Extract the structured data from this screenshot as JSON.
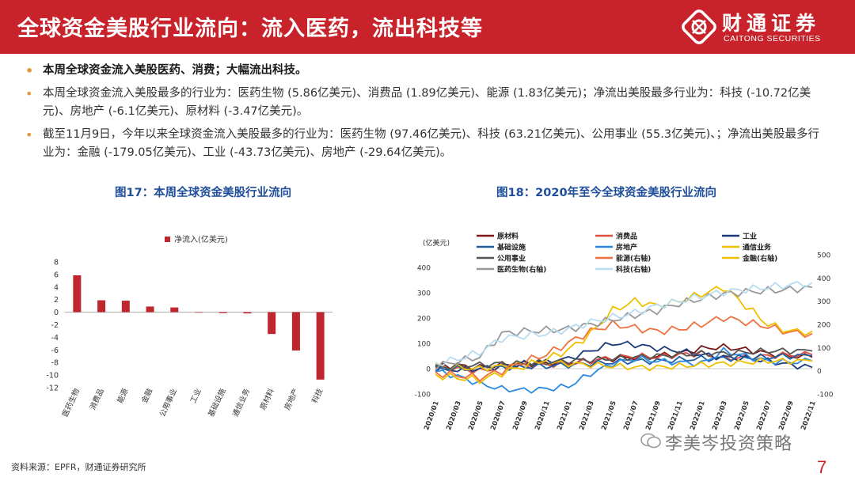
{
  "header": {
    "title": "全球资金美股行业流向：流入医药，流出科技等",
    "logo_cn": "财通证券",
    "logo_en": "CAITONG SECURITIES",
    "color": "#c8232b"
  },
  "bullets": [
    "本周全球资金流入美股医药、消费；大幅流出科技。",
    "本周全球资金流入美股最多的行业为：医药生物 (5.86亿美元)、消费品 (1.89亿美元)、能源 (1.83亿美元)；净流出美股最多行业为：科技 (-10.72亿美元)、房地产 (-6.1亿美元)、原材料 (-3.47亿美元)。",
    "截至11月9日，今年以来全球资金流入美股最多的行业为：医药生物 (97.46亿美元)、科技 (63.21亿美元)、公用事业 (55.3亿美元)、；净流出美股最多行业为：金融 (-179.05亿美元)、工业 (-43.73亿美元)、房地产 (-29.64亿美元)。"
  ],
  "fig17": {
    "title": "图17：本周全球资金美股行业流向"
  },
  "fig18": {
    "title": "图18：2020年至今全球资金美股行业流向"
  },
  "chart_data": [
    {
      "type": "bar",
      "title": "图17：本周全球资金美股行业流向",
      "legend": "净流入(亿美元)",
      "categories": [
        "医药生物",
        "消费品",
        "能源",
        "金融",
        "公用事业",
        "工业",
        "基础设施",
        "通信业务",
        "原材料",
        "房地产",
        "科技"
      ],
      "values": [
        5.86,
        1.89,
        1.83,
        0.9,
        0.75,
        0.0,
        -0.15,
        -0.2,
        -3.47,
        -6.1,
        -10.72
      ],
      "ylim": [
        -12,
        8
      ],
      "yticks": [
        "8",
        "6",
        "4",
        "2",
        "0",
        "-2",
        "-4",
        "-6",
        "-8",
        "-10",
        "-12"
      ],
      "color": "#c0262d"
    },
    {
      "type": "line",
      "title": "图18：2020年至今全球资金美股行业流向",
      "ylabel": "(亿美元)",
      "ylim_left": [
        -100,
        400
      ],
      "ylim_right": [
        -100,
        500
      ],
      "yticks_left": [
        "400",
        "300",
        "200",
        "100",
        "0",
        "-100"
      ],
      "yticks_right": [
        "500",
        "400",
        "300",
        "200",
        "100",
        "0",
        "-100"
      ],
      "x_ticks": [
        "2020/01",
        "2020/03",
        "2020/05",
        "2020/07",
        "2020/09",
        "2020/11",
        "2021/01",
        "2021/03",
        "2021/05",
        "2021/07",
        "2021/09",
        "2021/11",
        "2022/01",
        "2022/03",
        "2022/05",
        "2022/07",
        "2022/09",
        "2022/11"
      ],
      "series": [
        {
          "name": "原材料",
          "color": "#7a1a1a",
          "axis": "left",
          "values": [
            10,
            12,
            5,
            15,
            20,
            22,
            25,
            30,
            40,
            45,
            50,
            60,
            80,
            85,
            75,
            60,
            50,
            45
          ]
        },
        {
          "name": "消费品",
          "color": "#e05040",
          "axis": "left",
          "values": [
            5,
            0,
            -10,
            5,
            10,
            15,
            20,
            30,
            45,
            50,
            45,
            55,
            60,
            40,
            45,
            50,
            55,
            55
          ]
        },
        {
          "name": "工业",
          "color": "#1a3a7a",
          "axis": "left",
          "values": [
            0,
            -5,
            0,
            10,
            20,
            25,
            40,
            70,
            100,
            95,
            80,
            70,
            55,
            45,
            40,
            30,
            15,
            5
          ]
        },
        {
          "name": "基础设施",
          "color": "#2060a0",
          "axis": "left",
          "values": [
            0,
            0,
            2,
            5,
            8,
            10,
            15,
            20,
            25,
            30,
            30,
            35,
            40,
            40,
            45,
            45,
            50,
            50
          ]
        },
        {
          "name": "房地产",
          "color": "#2a8ae0",
          "axis": "left",
          "values": [
            -10,
            -30,
            -60,
            -80,
            -85,
            -80,
            -70,
            -20,
            20,
            40,
            30,
            25,
            20,
            70,
            50,
            30,
            25,
            30
          ]
        },
        {
          "name": "通信业务",
          "color": "#f0c000",
          "axis": "left",
          "values": [
            10,
            5,
            0,
            10,
            20,
            25,
            20,
            15,
            10,
            5,
            5,
            10,
            15,
            20,
            25,
            30,
            30,
            30
          ]
        },
        {
          "name": "公用事业",
          "color": "#555555",
          "axis": "left",
          "values": [
            5,
            10,
            15,
            20,
            20,
            25,
            30,
            35,
            40,
            45,
            50,
            55,
            60,
            60,
            65,
            70,
            70,
            70
          ]
        },
        {
          "name": "能源(右轴)",
          "color": "#f07040",
          "axis": "right",
          "values": [
            -10,
            -20,
            -30,
            0,
            40,
            70,
            120,
            170,
            200,
            185,
            170,
            180,
            200,
            230,
            210,
            190,
            165,
            160
          ]
        },
        {
          "name": "金融(右轴)",
          "color": "#f0c000",
          "axis": "right",
          "values": [
            -20,
            -30,
            -40,
            -10,
            20,
            50,
            90,
            160,
            260,
            300,
            280,
            300,
            330,
            360,
            280,
            200,
            170,
            170
          ]
        },
        {
          "name": "医药生物(右轴)",
          "color": "#999999",
          "axis": "right",
          "values": [
            20,
            40,
            60,
            160,
            170,
            175,
            180,
            200,
            220,
            240,
            260,
            290,
            310,
            330,
            340,
            345,
            350,
            360
          ]
        },
        {
          "name": "科技(右轴)",
          "color": "#b8dcf0",
          "axis": "right",
          "values": [
            30,
            50,
            80,
            140,
            150,
            160,
            180,
            210,
            230,
            250,
            280,
            300,
            320,
            340,
            350,
            360,
            370,
            380
          ]
        }
      ]
    }
  ],
  "footer": {
    "source": "资料来源：EPFR，财通证券研究所",
    "watermark": "李美岑投资策略",
    "page": "7"
  }
}
